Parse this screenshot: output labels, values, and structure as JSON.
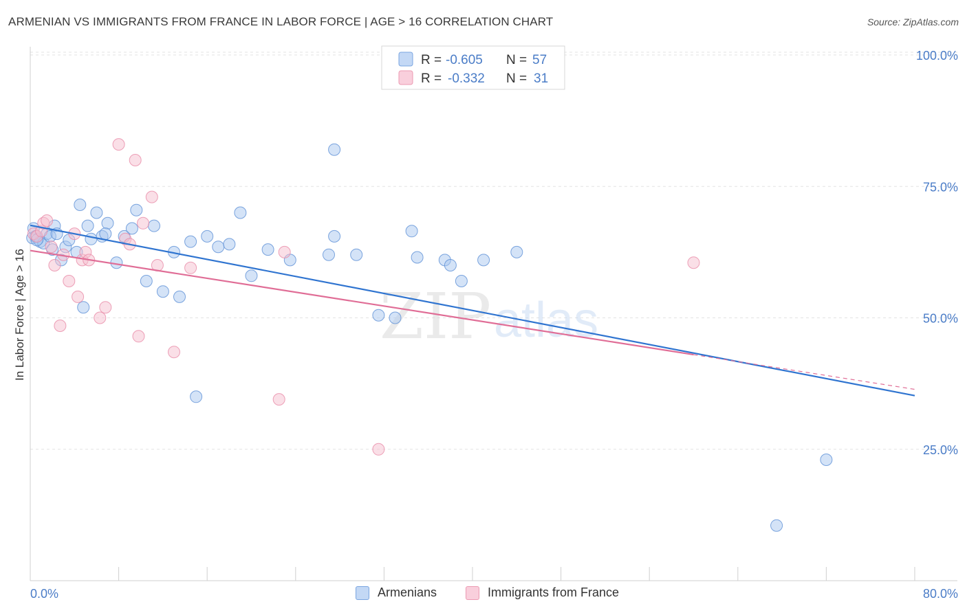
{
  "title": "ARMENIAN VS IMMIGRANTS FROM FRANCE IN LABOR FORCE | AGE > 16 CORRELATION CHART",
  "source": "Source: ZipAtlas.com",
  "watermark": {
    "zip": "ZIP",
    "atlas": "atlas"
  },
  "colors": {
    "blue_fill": "#a9c7f0",
    "blue_stroke": "#5b8fd6",
    "blue_line": "#2f74d0",
    "pink_fill": "#f6bfd0",
    "pink_stroke": "#e88aa6",
    "pink_line": "#e06d96",
    "axis_text_blue": "#4a7cc7",
    "grid": "#e3e3e3"
  },
  "legend_top": {
    "rows": [
      {
        "r_label": "R =",
        "r_value": "-0.605",
        "n_label": "N =",
        "n_value": "57",
        "color": "blue"
      },
      {
        "r_label": "R =",
        "r_value": "-0.332",
        "n_label": "N =",
        "n_value": "31",
        "color": "pink"
      }
    ]
  },
  "legend_bottom": [
    {
      "label": "Armenians",
      "color": "blue"
    },
    {
      "label": "Immigrants from France",
      "color": "pink"
    }
  ],
  "chart_data": {
    "type": "scatter",
    "title": "ARMENIAN VS IMMIGRANTS FROM FRANCE IN LABOR FORCE | AGE > 16 CORRELATION CHART",
    "xlabel": "",
    "ylabel": "In Labor Force | Age > 16",
    "xlim": [
      0,
      80
    ],
    "ylim": [
      0,
      100
    ],
    "x_tick_labels": [
      "0.0%",
      "80.0%"
    ],
    "y_tick_values": [
      25,
      50,
      75,
      100
    ],
    "y_tick_labels": [
      "25.0%",
      "50.0%",
      "75.0%",
      "100.0%"
    ],
    "grid": true,
    "legend_position": "top-center",
    "series": [
      {
        "name": "Armenians",
        "color": "blue",
        "r": -0.605,
        "n": 57,
        "trend": {
          "x": [
            0,
            80
          ],
          "y": [
            67.6,
            35.2
          ]
        },
        "points": [
          [
            0.2,
            65.2
          ],
          [
            0.3,
            67.0
          ],
          [
            0.5,
            65.5
          ],
          [
            0.7,
            65.0
          ],
          [
            0.9,
            64.5
          ],
          [
            1.2,
            64.2
          ],
          [
            1.5,
            66.0
          ],
          [
            1.8,
            65.5
          ],
          [
            2.2,
            67.5
          ],
          [
            2.4,
            66.0
          ],
          [
            2.8,
            61.0
          ],
          [
            3.2,
            63.5
          ],
          [
            3.5,
            64.8
          ],
          [
            4.2,
            62.5
          ],
          [
            4.5,
            71.5
          ],
          [
            5.2,
            67.5
          ],
          [
            5.5,
            65.0
          ],
          [
            6.0,
            70.0
          ],
          [
            6.5,
            65.5
          ],
          [
            7.0,
            68.0
          ],
          [
            7.8,
            60.5
          ],
          [
            8.5,
            65.5
          ],
          [
            9.2,
            67.0
          ],
          [
            10.5,
            57.0
          ],
          [
            11.2,
            67.5
          ],
          [
            12.0,
            55.0
          ],
          [
            13.0,
            62.5
          ],
          [
            13.5,
            54.0
          ],
          [
            14.5,
            64.5
          ],
          [
            15.0,
            35.0
          ],
          [
            16.0,
            65.5
          ],
          [
            17.0,
            63.5
          ],
          [
            18.0,
            64.0
          ],
          [
            19.0,
            70.0
          ],
          [
            20.0,
            58.0
          ],
          [
            21.5,
            63.0
          ],
          [
            23.5,
            61.0
          ],
          [
            27.0,
            62.0
          ],
          [
            27.5,
            65.5
          ],
          [
            27.5,
            82.0
          ],
          [
            29.5,
            62.0
          ],
          [
            31.5,
            50.5
          ],
          [
            33.0,
            50.0
          ],
          [
            34.5,
            66.5
          ],
          [
            35.0,
            61.5
          ],
          [
            37.5,
            61.0
          ],
          [
            38.0,
            60.0
          ],
          [
            39.0,
            57.0
          ],
          [
            41.0,
            61.0
          ],
          [
            44.0,
            62.5
          ],
          [
            67.5,
            10.5
          ],
          [
            72.0,
            23.0
          ],
          [
            0.6,
            64.8
          ],
          [
            6.8,
            66.0
          ],
          [
            9.6,
            70.5
          ],
          [
            4.8,
            52.0
          ],
          [
            2.0,
            63.0
          ]
        ]
      },
      {
        "name": "Immigrants from France",
        "color": "pink",
        "r": -0.332,
        "n": 31,
        "trend": {
          "x": [
            0,
            60
          ],
          "y": [
            62.8,
            43.0
          ]
        },
        "trend_dashed": {
          "x": [
            60,
            80
          ],
          "y": [
            43.0,
            36.4
          ]
        },
        "points": [
          [
            0.3,
            66.0
          ],
          [
            0.6,
            65.5
          ],
          [
            1.0,
            66.5
          ],
          [
            1.2,
            68.0
          ],
          [
            1.5,
            68.5
          ],
          [
            1.9,
            63.5
          ],
          [
            2.2,
            60.0
          ],
          [
            2.7,
            48.5
          ],
          [
            3.0,
            62.0
          ],
          [
            3.5,
            57.0
          ],
          [
            4.0,
            66.0
          ],
          [
            4.3,
            54.0
          ],
          [
            4.7,
            61.0
          ],
          [
            5.0,
            62.5
          ],
          [
            5.3,
            61.0
          ],
          [
            6.3,
            50.0
          ],
          [
            6.8,
            52.0
          ],
          [
            8.0,
            83.0
          ],
          [
            8.6,
            65.0
          ],
          [
            9.0,
            64.0
          ],
          [
            9.5,
            80.0
          ],
          [
            9.8,
            46.5
          ],
          [
            10.2,
            68.0
          ],
          [
            11.0,
            73.0
          ],
          [
            11.5,
            60.0
          ],
          [
            13.0,
            43.5
          ],
          [
            14.5,
            59.5
          ],
          [
            22.5,
            34.5
          ],
          [
            23.0,
            62.5
          ],
          [
            31.5,
            25.0
          ],
          [
            60.0,
            60.5
          ]
        ]
      }
    ]
  }
}
